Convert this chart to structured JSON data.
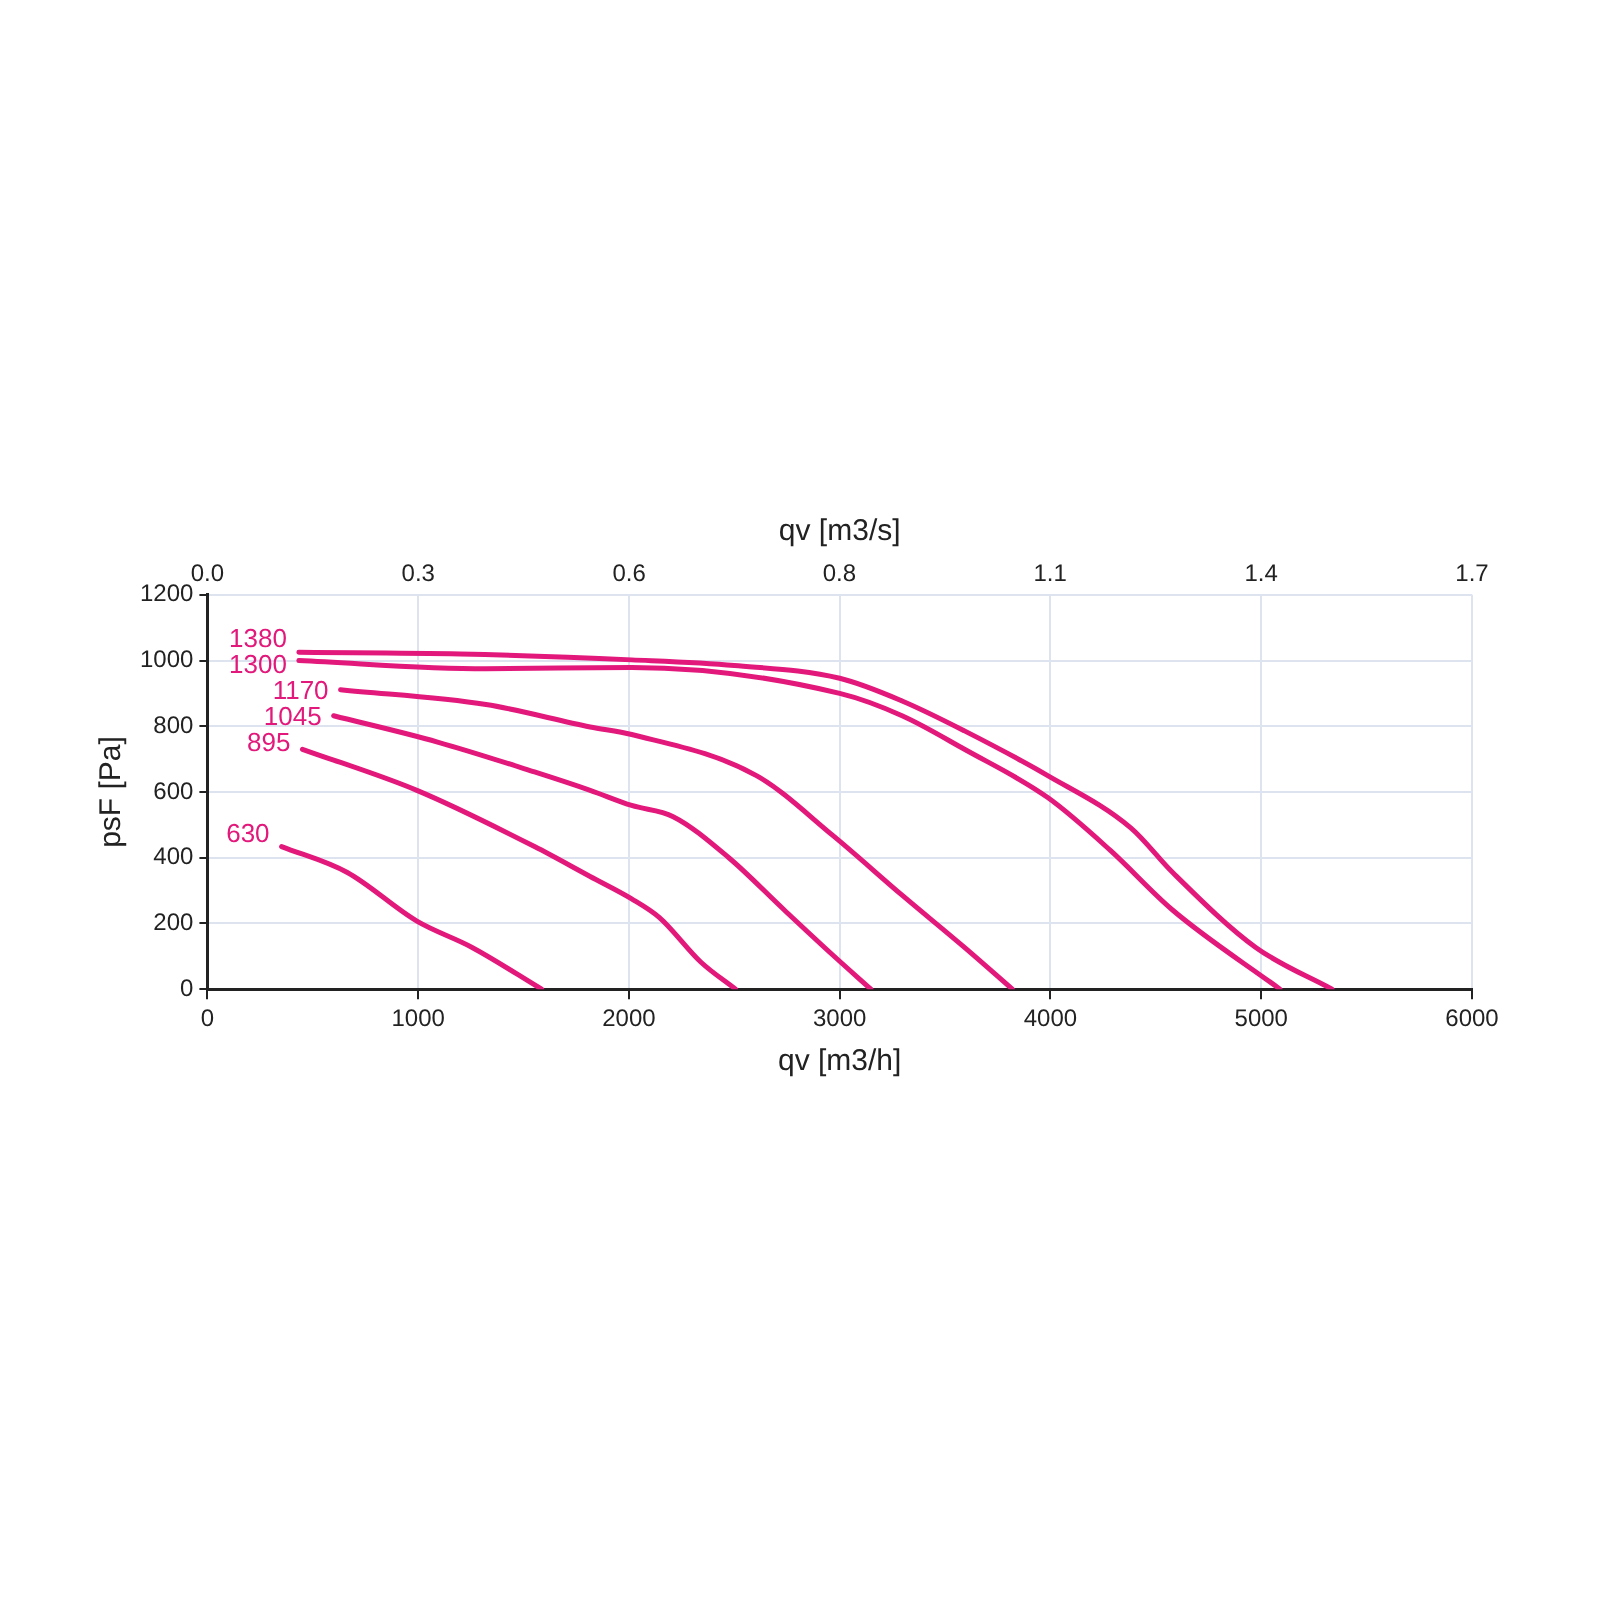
{
  "chart_data": {
    "type": "line",
    "xlabel": "qv [m3/h]",
    "ylabel": "psF [Pa]",
    "x2label": "qv [m3/s]",
    "xlim": [
      0,
      6000
    ],
    "xticks": [
      0,
      1000,
      2000,
      3000,
      4000,
      5000,
      6000
    ],
    "x2lim": [
      0,
      1.667
    ],
    "x2ticks": [
      {
        "value": 0,
        "label": "0.0"
      },
      {
        "value": 0.278,
        "label": "0.3"
      },
      {
        "value": 0.556,
        "label": "0.6"
      },
      {
        "value": 0.833,
        "label": "0.8"
      },
      {
        "value": 1.111,
        "label": "1.1"
      },
      {
        "value": 1.389,
        "label": "1.4"
      },
      {
        "value": 1.667,
        "label": "1.7"
      }
    ],
    "ylim": [
      0,
      1200
    ],
    "yticks": [
      0,
      200,
      400,
      600,
      800,
      1000,
      1200
    ],
    "grid": true,
    "legend": false,
    "marker": "none",
    "line_style": "solid",
    "series": [
      {
        "name": "1380",
        "color": "#e2187b",
        "x": [
          434,
          1200,
          2013,
          2500,
          3000,
          3296,
          3592,
          3987,
          4381,
          4580,
          4974,
          5336
        ],
        "values": [
          1025,
          1020,
          1002,
          985,
          946,
          877,
          786,
          650,
          491,
          355,
          127,
          0
        ]
      },
      {
        "name": "1300",
        "color": "#e2187b",
        "x": [
          434,
          1320,
          2013,
          3000,
          3296,
          3592,
          3987,
          4283,
          4579,
          5089
        ],
        "values": [
          1000,
          975,
          979,
          900,
          832,
          730,
          583,
          423,
          241,
          0
        ]
      },
      {
        "name": "1170",
        "color": "#e2187b",
        "x": [
          632,
          1322,
          1816,
          2013,
          2605,
          2967,
          3296,
          3592,
          3819
        ],
        "values": [
          911,
          866,
          798,
          775,
          650,
          468,
          286,
          127,
          0
        ]
      },
      {
        "name": "1045",
        "color": "#e2187b",
        "x": [
          599,
          1092,
          1552,
          1816,
          2013,
          2210,
          2474,
          2737,
          2967,
          3148
        ],
        "values": [
          832,
          752,
          661,
          605,
          559,
          525,
          400,
          241,
          104,
          0
        ]
      },
      {
        "name": "895",
        "color": "#e2187b",
        "x": [
          451,
          994,
          1552,
          1816,
          2013,
          2145,
          2342,
          2506
        ],
        "values": [
          730,
          605,
          434,
          343,
          275,
          218,
          82,
          0
        ]
      },
      {
        "name": "630",
        "color": "#e2187b",
        "x": [
          352,
          664,
          994,
          1256,
          1586
        ],
        "values": [
          434,
          355,
          207,
          127,
          0
        ]
      }
    ]
  }
}
